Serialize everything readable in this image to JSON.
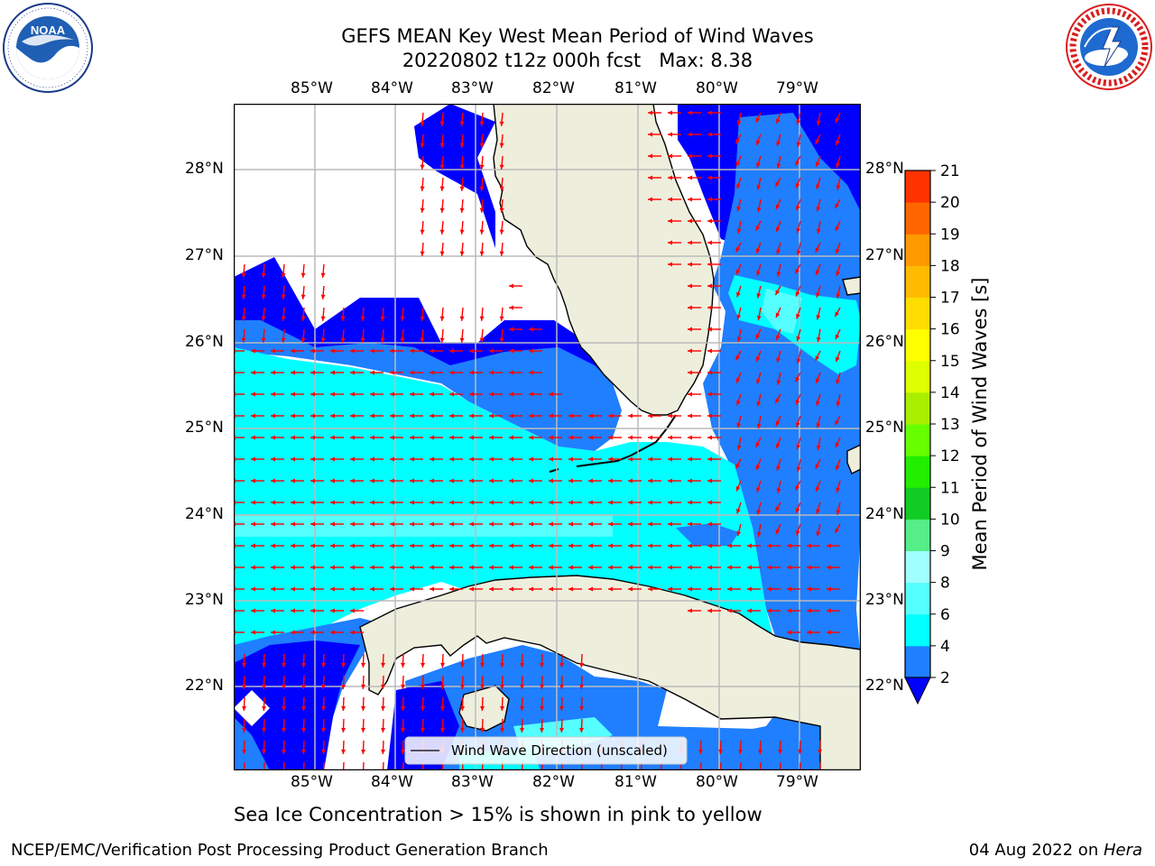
{
  "title": {
    "line1": "GEFS MEAN Key West Mean Period of Wind Waves",
    "line2": "20220802 t12z 000h fcst   Max: 8.38"
  },
  "logos": {
    "left": {
      "name": "NOAA",
      "ring_text": "NATIONAL OCEANIC AND ATMOSPHERIC ADMINISTRATION · U.S. DEPARTMENT OF COMMERCE"
    },
    "right": {
      "ring_text": "NATIONAL WEATHER SERVICE"
    }
  },
  "map": {
    "lon_labels": [
      "85°W",
      "84°W",
      "83°W",
      "82°W",
      "81°W",
      "80°W",
      "79°W"
    ],
    "lat_labels": [
      "28°N",
      "27°N",
      "26°N",
      "25°N",
      "24°N",
      "23°N",
      "22°N"
    ],
    "legend": "Wind Wave Direction (unscaled)",
    "colors": {
      "land": "#eeeedd",
      "water_blue": "#0000ff",
      "water_mid": "#1f7fff",
      "water_cyan": "#00ffff",
      "grid": "#bbbbbb",
      "arrow": "#ff0000"
    }
  },
  "colorbar": {
    "label": "Mean Period of Wind Waves [s]",
    "ticks": [
      "2",
      "4",
      "6",
      "8",
      "9",
      "10",
      "11",
      "12",
      "13",
      "14",
      "15",
      "16",
      "17",
      "18",
      "19",
      "20",
      "21"
    ],
    "colors": [
      "#1f7fff",
      "#00ffff",
      "#55ffff",
      "#a0ffff",
      "#55ee88",
      "#11cc22",
      "#22ee00",
      "#66ff00",
      "#aaee00",
      "#ddff00",
      "#ffff00",
      "#ffdd00",
      "#ffbb00",
      "#ff9900",
      "#ff6600",
      "#ff3300"
    ],
    "under_color": "#0000ff"
  },
  "caption": "Sea Ice Concentration > 15% is shown in pink to yellow",
  "footer": {
    "left": "NCEP/EMC/Verification Post Processing Product Generation Branch",
    "right_date": "04 Aug 2022 on ",
    "right_host": "Hera"
  }
}
